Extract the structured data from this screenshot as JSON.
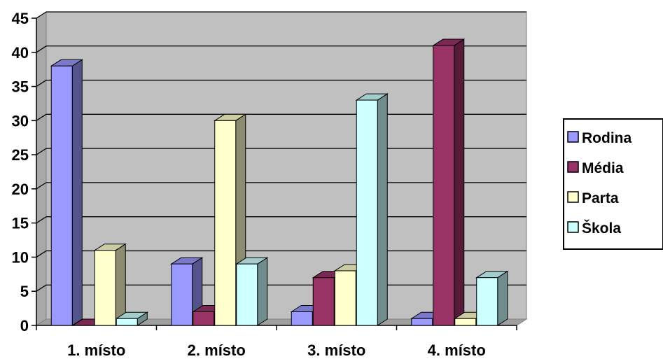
{
  "chart_data": {
    "type": "bar",
    "title": "",
    "xlabel": "",
    "ylabel": "",
    "categories": [
      "1. místo",
      "2. místo",
      "3. místo",
      "4. místo"
    ],
    "ylim": [
      0,
      45
    ],
    "yticks": [
      "0",
      "5",
      "10",
      "15",
      "20",
      "25",
      "30",
      "35",
      "40",
      "45"
    ],
    "grid": true,
    "legend_position": "right",
    "three_d": true,
    "plot_background": "#c0c0c0",
    "series": [
      {
        "name": "Rodina",
        "values": [
          38,
          9,
          2,
          1
        ],
        "color": "#9999ff"
      },
      {
        "name": "Média",
        "values": [
          0,
          2,
          7,
          41
        ],
        "color": "#993366"
      },
      {
        "name": "Parta",
        "values": [
          11,
          30,
          8,
          1
        ],
        "color": "#ffffcc"
      },
      {
        "name": "Škola",
        "values": [
          1,
          9,
          33,
          7
        ],
        "color": "#ccffff"
      }
    ]
  }
}
